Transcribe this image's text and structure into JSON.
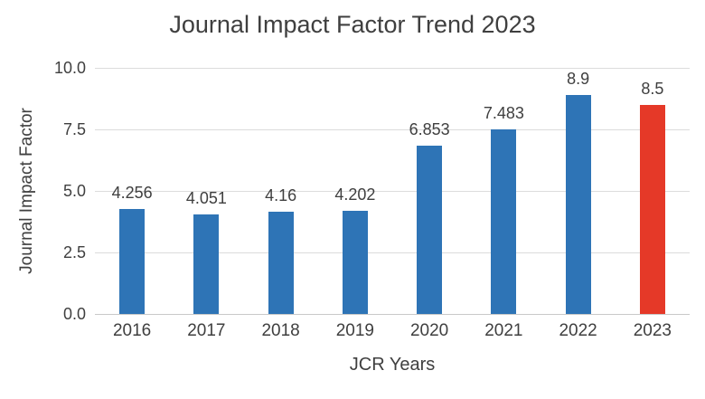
{
  "chart_data": {
    "type": "bar",
    "title": "Journal Impact Factor Trend 2023",
    "xlabel": "JCR Years",
    "ylabel": "Journal Impact Factor",
    "categories": [
      "2016",
      "2017",
      "2018",
      "2019",
      "2020",
      "2021",
      "2022",
      "2023"
    ],
    "values": [
      4.256,
      4.051,
      4.16,
      4.202,
      6.853,
      7.483,
      8.9,
      8.5
    ],
    "value_labels": [
      "4.256",
      "4.051",
      "4.16",
      "4.202",
      "6.853",
      "7.483",
      "8.9",
      "8.5"
    ],
    "ylim": [
      0,
      10
    ],
    "yticks": [
      0.0,
      2.5,
      5.0,
      7.5,
      10.0
    ],
    "ytick_labels": [
      "0.0",
      "2.5",
      "5.0",
      "7.5",
      "10.0"
    ],
    "grid": "horizontal",
    "legend": "none",
    "highlight_index": 7,
    "colors": {
      "bar_default": "#2e74b6",
      "bar_highlight": "#e53928",
      "text": "#3f3f3f",
      "gridline": "#dcdcdc"
    }
  }
}
